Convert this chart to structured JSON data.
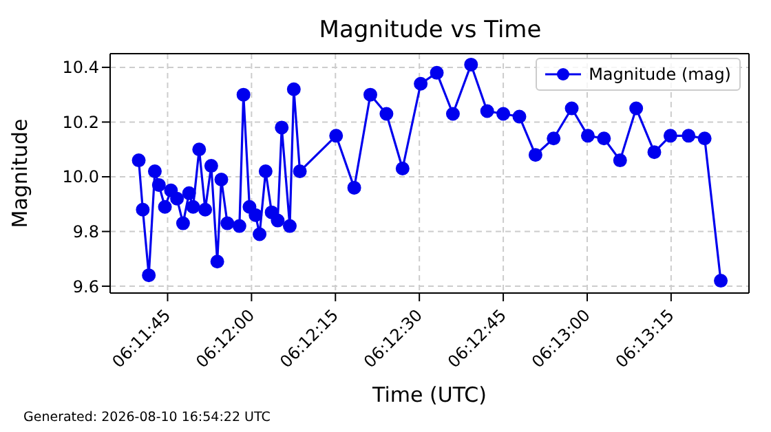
{
  "chart_data": {
    "type": "line",
    "title": "Magnitude vs Time",
    "xlabel": "Time (UTC)",
    "ylabel": "Magnitude",
    "annotations": [
      "Generated: 2026-08-10 16:54:22 UTC"
    ],
    "x": [
      6.1944,
      6.1946,
      6.1949,
      6.1952,
      6.1954,
      6.1957,
      6.196,
      6.1963,
      6.1966,
      6.1969,
      6.1971,
      6.1974,
      6.1977,
      6.198,
      6.1983,
      6.1985,
      6.1988,
      6.1994,
      6.1996,
      6.1999,
      6.2002,
      6.2004,
      6.2007,
      6.201,
      6.2013,
      6.2015,
      6.2019,
      6.2021,
      6.2024,
      6.2042,
      6.2051,
      6.2059,
      6.2067,
      6.2075,
      6.2084,
      6.2092,
      6.21,
      6.2109,
      6.2117,
      6.2125,
      6.2133,
      6.2141,
      6.215,
      6.2159,
      6.2167,
      6.2175,
      6.2183,
      6.2191,
      6.22,
      6.2208,
      6.2217,
      6.2225,
      6.2233
    ],
    "series": [
      {
        "name": "Magnitude (mag)",
        "color": "#0000ee",
        "values": [
          10.06,
          9.88,
          9.64,
          10.02,
          9.97,
          9.89,
          9.95,
          9.92,
          9.83,
          9.94,
          9.89,
          10.1,
          9.88,
          10.04,
          9.69,
          9.99,
          9.83,
          9.82,
          10.3,
          9.89,
          9.86,
          9.79,
          10.02,
          9.87,
          9.84,
          10.18,
          9.82,
          10.32,
          10.02,
          10.15,
          9.96,
          10.3,
          10.23,
          10.03,
          10.34,
          10.38,
          10.23,
          10.41,
          10.24,
          10.23,
          10.22,
          10.08,
          10.14,
          10.25,
          10.15,
          10.14,
          10.06,
          10.25,
          10.09,
          10.15,
          10.15,
          10.14,
          9.62
        ]
      }
    ],
    "xlim": [
      6.19298,
      6.2247
    ],
    "xticks": [
      {
        "value": 6.1958333,
        "label": "06:11:45"
      },
      {
        "value": 6.2,
        "label": "06:12:00"
      },
      {
        "value": 6.2041667,
        "label": "06:12:15"
      },
      {
        "value": 6.2083333,
        "label": "06:12:30"
      },
      {
        "value": 6.2125,
        "label": "06:12:45"
      },
      {
        "value": 6.2166667,
        "label": "06:13:00"
      },
      {
        "value": 6.2208333,
        "label": "06:13:15"
      }
    ],
    "ylim": [
      9.575,
      10.45
    ],
    "yticks": [
      {
        "value": 9.6,
        "label": "9.6"
      },
      {
        "value": 9.8,
        "label": "9.8"
      },
      {
        "value": 10.0,
        "label": "10.0"
      },
      {
        "value": 10.2,
        "label": "10.2"
      },
      {
        "value": 10.4,
        "label": "10.4"
      }
    ],
    "grid": true,
    "legend": "top right",
    "marker": "circle",
    "line_style": "solid"
  }
}
